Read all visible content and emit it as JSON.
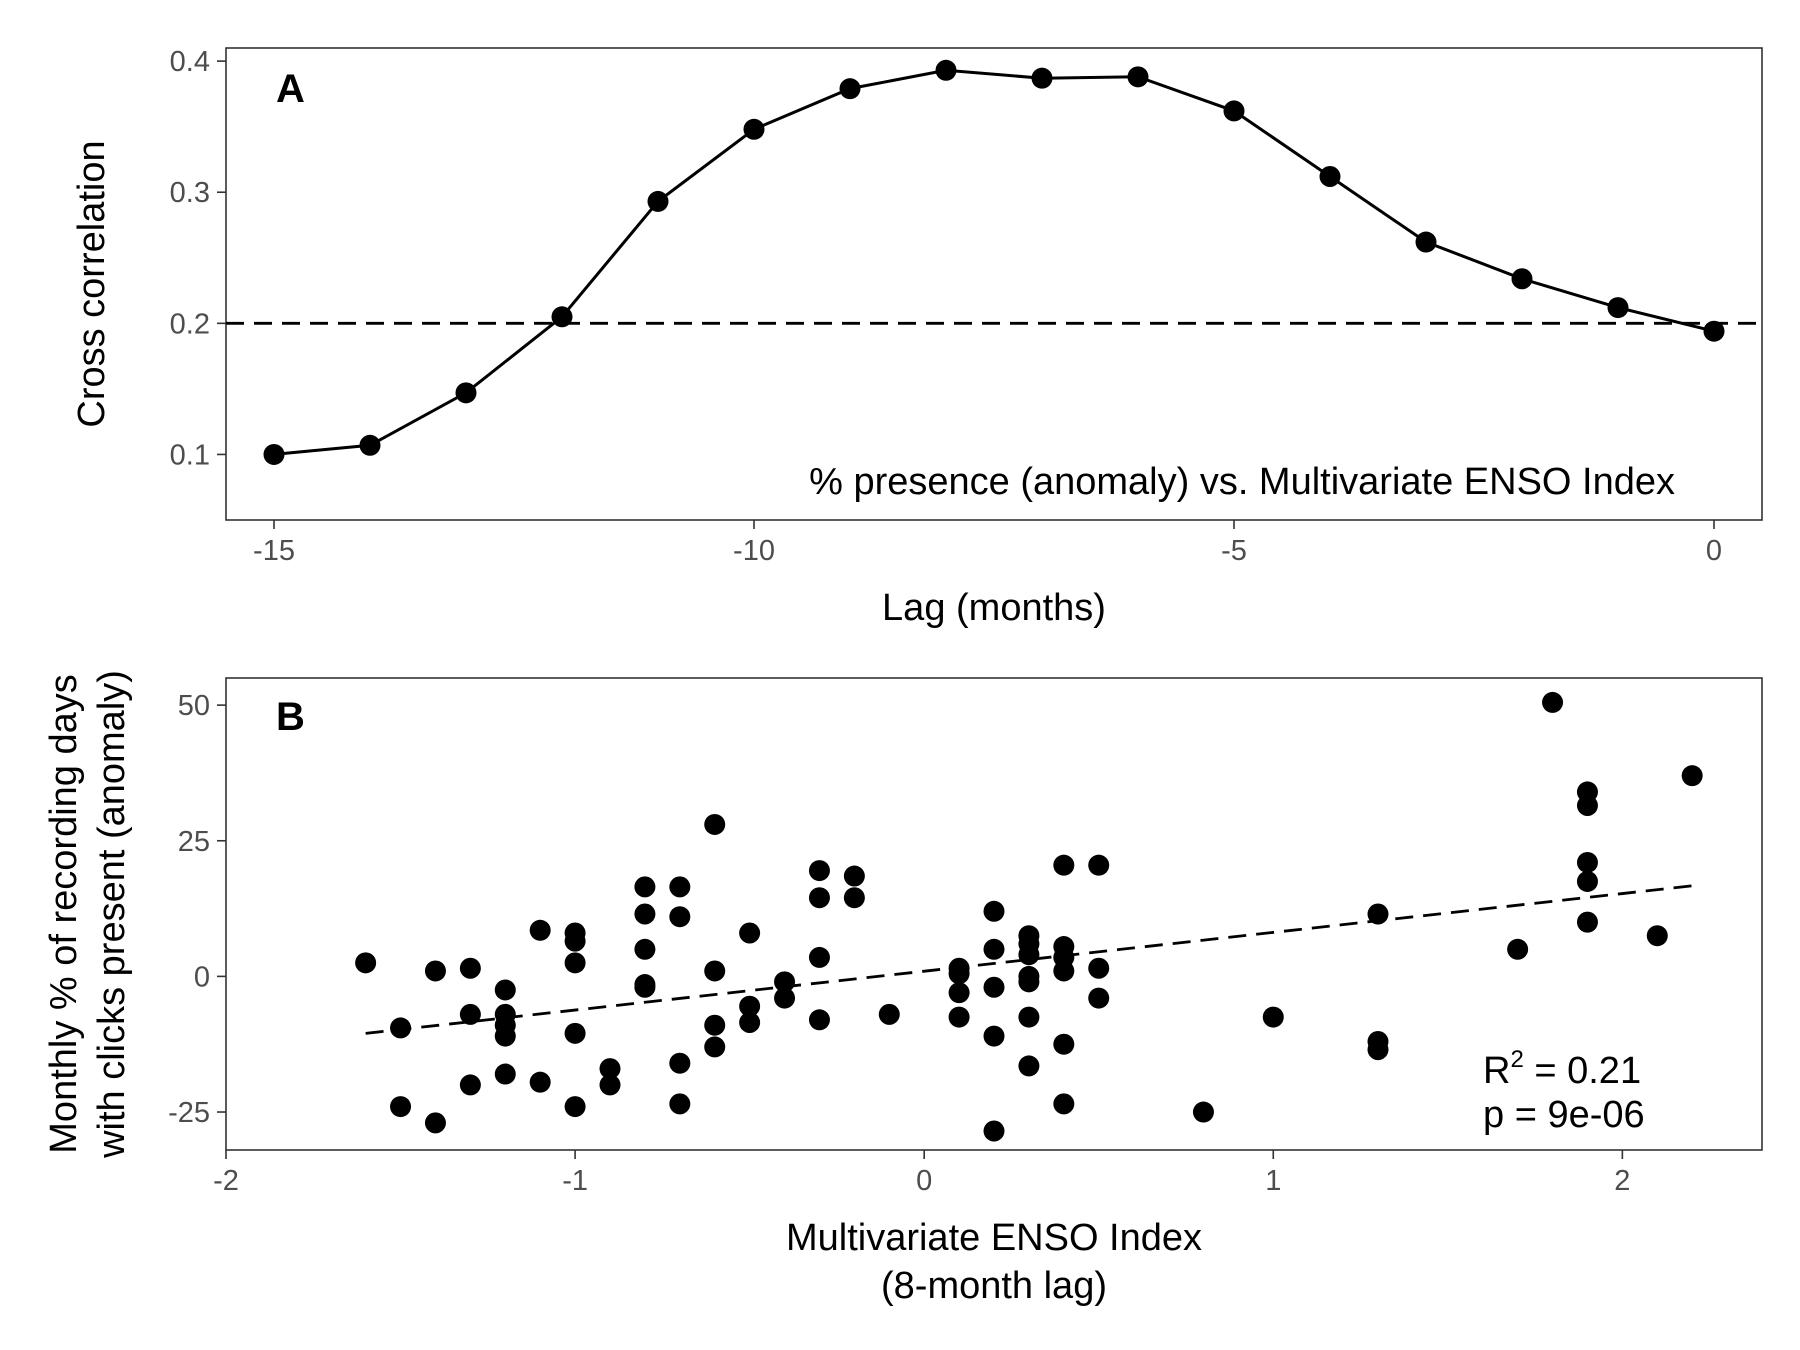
{
  "chart_data": [
    {
      "type": "line",
      "panel_label": "A",
      "xlabel": "Lag (months)",
      "ylabel": "Cross correlation",
      "annotation": "% presence (anomaly) vs. Multivariate ENSO Index",
      "xlim": [
        -15.5,
        0.5
      ],
      "ylim": [
        0.05,
        0.41
      ],
      "x_ticks": [
        -15,
        -10,
        -5,
        0
      ],
      "x_tick_labels": [
        "-15",
        "-10",
        "-5",
        "0"
      ],
      "y_ticks": [
        0.1,
        0.2,
        0.3,
        0.4
      ],
      "y_tick_labels": [
        "0.1",
        "0.2",
        "0.3",
        "0.4"
      ],
      "threshold": 0.2,
      "x": [
        -15,
        -14,
        -13,
        -12,
        -11,
        -10,
        -9,
        -8,
        -7,
        -6,
        -5,
        -4,
        -3,
        -2,
        -1,
        0
      ],
      "y": [
        0.1,
        0.107,
        0.147,
        0.205,
        0.293,
        0.348,
        0.379,
        0.393,
        0.387,
        0.388,
        0.362,
        0.312,
        0.262,
        0.234,
        0.212,
        0.194
      ],
      "grid": false
    },
    {
      "type": "scatter",
      "panel_label": "B",
      "xlabel": [
        "Multivariate ENSO Index",
        "(8-month lag)"
      ],
      "ylabel": [
        "Monthly % of recording days",
        "with clicks present (anomaly)"
      ],
      "stats": {
        "r2_label": "R",
        "r2_sup": "2",
        "r2_value": " = 0.21",
        "p_label": "p = 9e-06"
      },
      "xlim": [
        -2,
        2.4
      ],
      "ylim": [
        -32,
        55
      ],
      "x_ticks": [
        -2,
        -1,
        0,
        1,
        2
      ],
      "x_tick_labels": [
        "-2",
        "-1",
        "0",
        "1",
        "2"
      ],
      "y_ticks": [
        -25,
        0,
        25,
        50
      ],
      "y_tick_labels": [
        "-25",
        "0",
        "25",
        "50"
      ],
      "trend": {
        "x": [
          -1.6,
          2.2
        ],
        "y": [
          -10.5,
          16.7
        ]
      },
      "points": [
        [
          -1.6,
          2.5
        ],
        [
          -1.5,
          -9.5
        ],
        [
          -1.5,
          -24
        ],
        [
          -1.4,
          1
        ],
        [
          -1.4,
          -27
        ],
        [
          -1.3,
          1.5
        ],
        [
          -1.3,
          -7
        ],
        [
          -1.3,
          -20
        ],
        [
          -1.2,
          -2.5
        ],
        [
          -1.2,
          -7
        ],
        [
          -1.2,
          -9
        ],
        [
          -1.2,
          -11
        ],
        [
          -1.2,
          -18
        ],
        [
          -1.1,
          8.5
        ],
        [
          -1.1,
          -19.5
        ],
        [
          -1.0,
          8
        ],
        [
          -1.0,
          6.5
        ],
        [
          -1.0,
          2.5
        ],
        [
          -1.0,
          -10.5
        ],
        [
          -1.0,
          -24
        ],
        [
          -0.9,
          -17
        ],
        [
          -0.9,
          -20
        ],
        [
          -0.8,
          16.5
        ],
        [
          -0.8,
          11.5
        ],
        [
          -0.8,
          5
        ],
        [
          -0.8,
          -1.5
        ],
        [
          -0.8,
          -2
        ],
        [
          -0.7,
          16.5
        ],
        [
          -0.7,
          11
        ],
        [
          -0.7,
          -16
        ],
        [
          -0.7,
          -23.5
        ],
        [
          -0.6,
          28
        ],
        [
          -0.6,
          1
        ],
        [
          -0.6,
          -9
        ],
        [
          -0.6,
          -13
        ],
        [
          -0.5,
          8
        ],
        [
          -0.5,
          -5.5
        ],
        [
          -0.5,
          -8.5
        ],
        [
          -0.4,
          -1
        ],
        [
          -0.4,
          -4
        ],
        [
          -0.3,
          19.5
        ],
        [
          -0.3,
          14.5
        ],
        [
          -0.3,
          3.5
        ],
        [
          -0.3,
          -8
        ],
        [
          -0.2,
          18.5
        ],
        [
          -0.2,
          14.5
        ],
        [
          -0.1,
          -7
        ],
        [
          0.1,
          1.5
        ],
        [
          0.1,
          0.5
        ],
        [
          0.1,
          -3
        ],
        [
          0.1,
          -7.5
        ],
        [
          0.2,
          12
        ],
        [
          0.2,
          5
        ],
        [
          0.2,
          -2
        ],
        [
          0.2,
          -11
        ],
        [
          0.2,
          -28.5
        ],
        [
          0.3,
          7.5
        ],
        [
          0.3,
          6
        ],
        [
          0.3,
          4
        ],
        [
          0.3,
          0
        ],
        [
          0.3,
          -1
        ],
        [
          0.3,
          -7.5
        ],
        [
          0.3,
          -16.5
        ],
        [
          0.4,
          20.5
        ],
        [
          0.4,
          5.5
        ],
        [
          0.4,
          3.5
        ],
        [
          0.4,
          1
        ],
        [
          0.4,
          -12.5
        ],
        [
          0.4,
          -23.5
        ],
        [
          0.5,
          20.5
        ],
        [
          0.5,
          1.5
        ],
        [
          0.5,
          -4
        ],
        [
          0.8,
          -25
        ],
        [
          1.0,
          -7.5
        ],
        [
          1.3,
          11.5
        ],
        [
          1.3,
          -12
        ],
        [
          1.3,
          -13.5
        ],
        [
          1.7,
          5
        ],
        [
          1.8,
          50.5
        ],
        [
          1.9,
          34
        ],
        [
          1.9,
          31.5
        ],
        [
          1.9,
          21
        ],
        [
          1.9,
          17.5
        ],
        [
          1.9,
          10
        ],
        [
          2.1,
          7.5
        ],
        [
          2.2,
          37
        ]
      ],
      "grid": false
    }
  ]
}
